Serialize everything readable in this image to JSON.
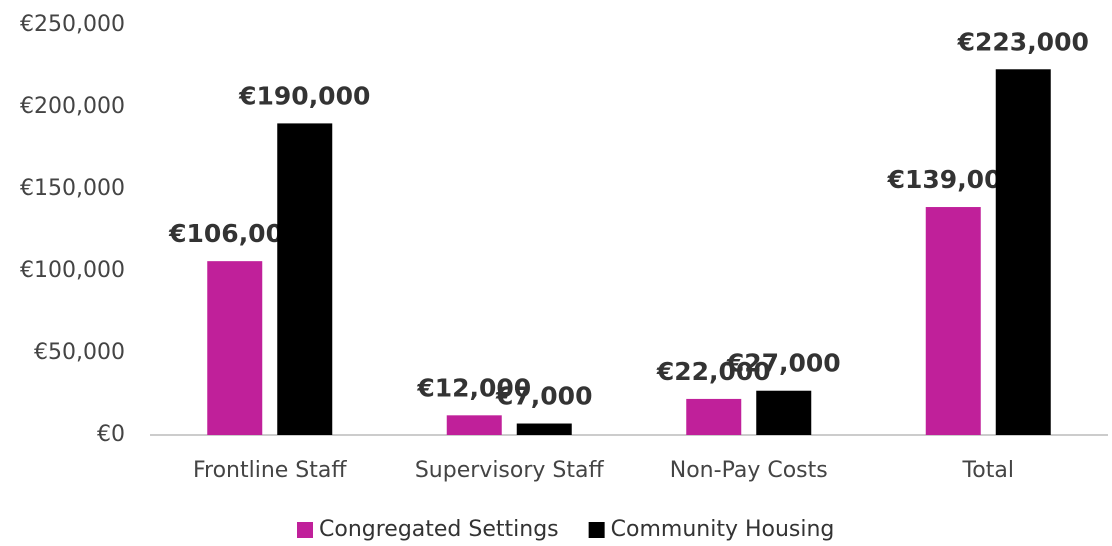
{
  "chart_data": {
    "type": "bar",
    "categories": [
      "Frontline Staff",
      "Supervisory Staff",
      "Non-Pay Costs",
      "Total"
    ],
    "series": [
      {
        "name": "Congregated Settings",
        "color": "#c0209a",
        "values": [
          106000,
          12000,
          22000,
          139000
        ],
        "value_labels": [
          "€106,000",
          "€12,000",
          "€22,000",
          "€139,000"
        ]
      },
      {
        "name": "Community Housing",
        "color": "#000000",
        "values": [
          190000,
          7000,
          27000,
          223000
        ],
        "value_labels": [
          "€190,000",
          "€7,000",
          "€27,000",
          "€223,000"
        ]
      }
    ],
    "ylim": [
      0,
      250000
    ],
    "yticks": [
      {
        "value": 0,
        "label": "€0"
      },
      {
        "value": 50000,
        "label": "€50,000"
      },
      {
        "value": 100000,
        "label": "€100,000"
      },
      {
        "value": 150000,
        "label": "€150,000"
      },
      {
        "value": 200000,
        "label": "€200,000"
      },
      {
        "value": 250000,
        "label": "€250,000"
      }
    ],
    "grid": false,
    "legend": "bottom"
  }
}
